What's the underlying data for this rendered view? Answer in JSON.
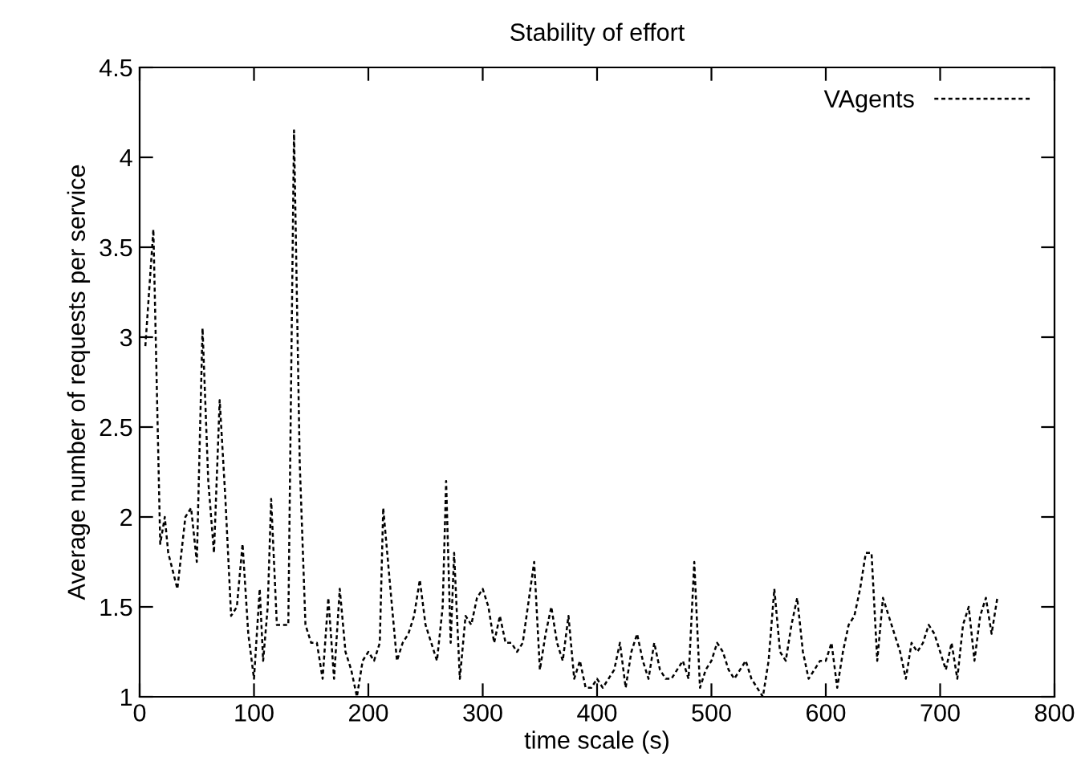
{
  "chart_data": {
    "type": "line",
    "title": "Stability of effort",
    "xlabel": "time scale (s)",
    "ylabel": "Average number of requests per service",
    "xlim": [
      0,
      800
    ],
    "xticks": [
      0,
      100,
      200,
      300,
      400,
      500,
      600,
      700,
      800
    ],
    "ylim": [
      1,
      4.5
    ],
    "yticks": [
      1,
      1.5,
      2,
      2.5,
      3,
      3.5,
      4,
      4.5
    ],
    "grid": false,
    "legend": "top right",
    "line_style": "dotted",
    "marker": "none",
    "series": [
      {
        "name": "VAgents",
        "color": "#000000",
        "x": [
          5,
          12,
          18,
          22,
          25,
          33,
          40,
          45,
          50,
          55,
          60,
          65,
          70,
          75,
          80,
          85,
          90,
          95,
          100,
          105,
          108,
          112,
          115,
          120,
          125,
          130,
          135,
          140,
          145,
          150,
          155,
          160,
          165,
          170,
          175,
          180,
          185,
          190,
          195,
          200,
          205,
          210,
          213,
          220,
          225,
          230,
          235,
          240,
          245,
          250,
          255,
          260,
          265,
          268,
          272,
          275,
          280,
          285,
          290,
          295,
          300,
          305,
          310,
          315,
          320,
          325,
          330,
          335,
          345,
          350,
          355,
          360,
          365,
          370,
          375,
          380,
          385,
          390,
          395,
          400,
          405,
          410,
          415,
          420,
          425,
          430,
          435,
          440,
          445,
          450,
          455,
          460,
          465,
          470,
          475,
          480,
          485,
          490,
          495,
          500,
          505,
          510,
          515,
          520,
          525,
          530,
          535,
          540,
          545,
          550,
          555,
          560,
          565,
          570,
          575,
          580,
          585,
          590,
          595,
          600,
          605,
          610,
          615,
          620,
          625,
          630,
          635,
          640,
          645,
          650,
          655,
          660,
          665,
          670,
          675,
          680,
          685,
          690,
          695,
          700,
          705,
          710,
          715,
          720,
          725,
          730,
          735,
          740,
          745,
          750
        ],
        "values": [
          2.95,
          3.6,
          1.85,
          2.0,
          1.8,
          1.6,
          2.0,
          2.05,
          1.75,
          3.05,
          2.2,
          1.8,
          2.65,
          2.1,
          1.45,
          1.5,
          1.85,
          1.35,
          1.1,
          1.6,
          1.2,
          1.5,
          2.1,
          1.4,
          1.4,
          1.4,
          4.15,
          2.3,
          1.4,
          1.3,
          1.3,
          1.1,
          1.55,
          1.1,
          1.6,
          1.25,
          1.15,
          1.0,
          1.2,
          1.25,
          1.2,
          1.3,
          2.05,
          1.55,
          1.2,
          1.3,
          1.35,
          1.45,
          1.65,
          1.4,
          1.3,
          1.2,
          1.5,
          2.2,
          1.3,
          1.8,
          1.1,
          1.45,
          1.4,
          1.55,
          1.6,
          1.5,
          1.3,
          1.45,
          1.3,
          1.3,
          1.25,
          1.3,
          1.75,
          1.15,
          1.35,
          1.5,
          1.3,
          1.2,
          1.45,
          1.1,
          1.2,
          1.05,
          1.05,
          1.1,
          1.05,
          1.1,
          1.15,
          1.3,
          1.05,
          1.25,
          1.35,
          1.2,
          1.1,
          1.3,
          1.15,
          1.1,
          1.1,
          1.15,
          1.2,
          1.1,
          1.75,
          1.05,
          1.15,
          1.2,
          1.3,
          1.25,
          1.15,
          1.1,
          1.15,
          1.2,
          1.1,
          1.05,
          1.0,
          1.2,
          1.6,
          1.25,
          1.2,
          1.4,
          1.55,
          1.25,
          1.1,
          1.15,
          1.2,
          1.2,
          1.3,
          1.05,
          1.25,
          1.4,
          1.45,
          1.6,
          1.8,
          1.8,
          1.2,
          1.55,
          1.45,
          1.35,
          1.25,
          1.1,
          1.3,
          1.25,
          1.3,
          1.4,
          1.35,
          1.25,
          1.15,
          1.3,
          1.1,
          1.4,
          1.5,
          1.2,
          1.45,
          1.55,
          1.35,
          1.55
        ]
      }
    ]
  }
}
